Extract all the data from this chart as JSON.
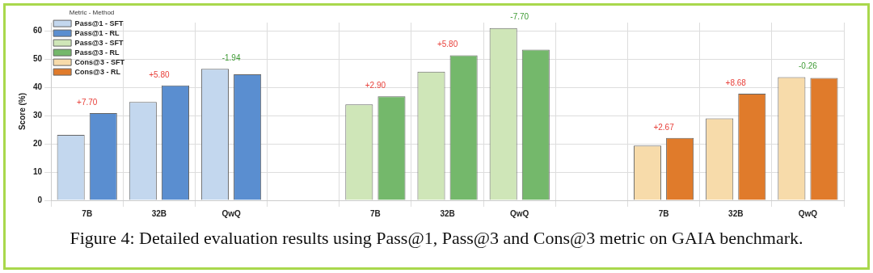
{
  "chart_data": {
    "type": "bar",
    "ylabel": "Score (%)",
    "legend_title": "Metric - Method",
    "legend": "top left",
    "categories": [
      "7B",
      "32B",
      "QwQ",
      null,
      "7B",
      "32B",
      "QwQ",
      null,
      "7B",
      "32B",
      "QwQ"
    ],
    "series": [
      {
        "name": "Pass@1 - SFT",
        "color": "#c3d7ee",
        "values": [
          23.2,
          34.9,
          46.6,
          null,
          null,
          null,
          null,
          null,
          null,
          null,
          null
        ]
      },
      {
        "name": "Pass@1 - RL",
        "color": "#5a8ed0",
        "values": [
          30.9,
          40.7,
          44.7,
          null,
          null,
          null,
          null,
          null,
          null,
          null,
          null
        ]
      },
      {
        "name": "Pass@3 - SFT",
        "color": "#cfe6b8",
        "values": [
          null,
          null,
          null,
          null,
          34.0,
          45.6,
          61.1,
          null,
          null,
          null,
          null
        ]
      },
      {
        "name": "Pass@3 - RL",
        "color": "#74b86b",
        "values": [
          null,
          null,
          null,
          null,
          36.9,
          51.4,
          53.4,
          null,
          null,
          null,
          null
        ]
      },
      {
        "name": "Cons@3 - SFT",
        "color": "#f7dbaa",
        "values": [
          null,
          null,
          null,
          null,
          null,
          null,
          null,
          null,
          19.4,
          29.1,
          43.7
        ]
      },
      {
        "name": "Cons@3 - RL",
        "color": "#e07b2b",
        "values": [
          null,
          null,
          null,
          null,
          null,
          null,
          null,
          null,
          22.1,
          37.8,
          43.4
        ]
      }
    ],
    "ylim": [
      0,
      63
    ],
    "yticks": [
      0,
      10,
      20,
      30,
      40,
      50,
      60
    ],
    "grid": true,
    "annotations": [
      "+7.70",
      "+5.80",
      "-1.94",
      "+2.90",
      "+5.80",
      "-7.70",
      "+2.67",
      "+8.68",
      "-0.26",
      "Figure 4: Detailed evaluation results using Pass@1, Pass@3 and Cons@3 metric on GAIA benchmark."
    ]
  }
}
